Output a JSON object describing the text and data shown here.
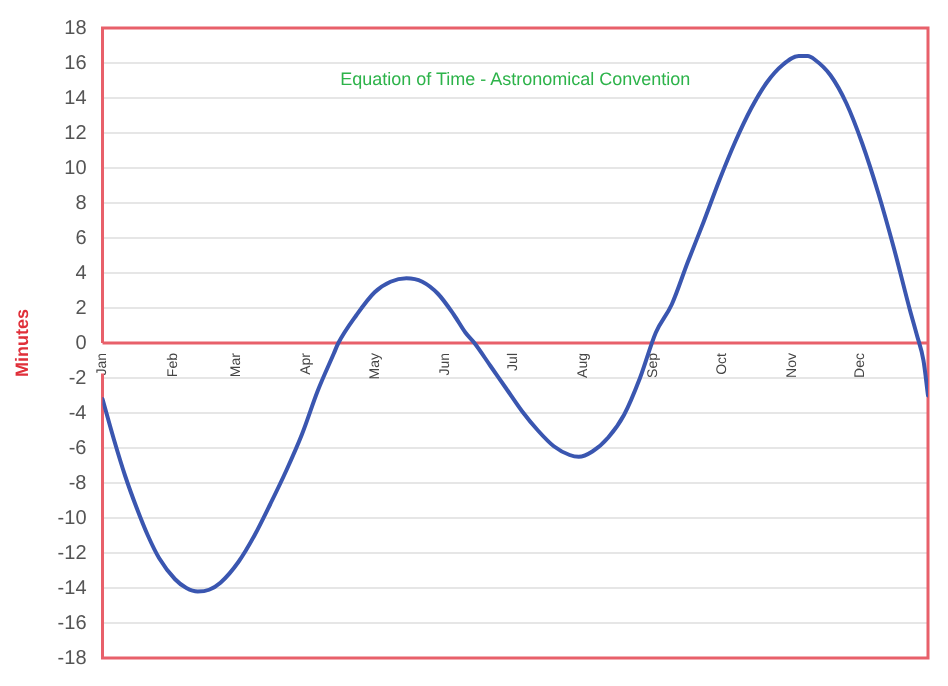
{
  "chart_data": {
    "type": "line",
    "title": "Equation of Time - Astronomical Convention",
    "ylabel": "Minutes",
    "x": [
      "--01-01",
      "--01-06",
      "--01-11",
      "--01-16",
      "--01-21",
      "--01-26",
      "--02-02",
      "--02-07",
      "--02-12",
      "--02-17",
      "--02-22",
      "--03-02",
      "--03-09",
      "--03-16",
      "--03-23",
      "--03-30",
      "--04-06",
      "--04-13",
      "--04-15",
      "--04-23",
      "--05-01",
      "--05-08",
      "--05-15",
      "--05-22",
      "--05-29",
      "--06-05",
      "--06-10",
      "--06-14",
      "--06-21",
      "--06-28",
      "--07-05",
      "--07-12",
      "--07-19",
      "--07-26",
      "--07-30",
      "--08-05",
      "--08-12",
      "--08-19",
      "--08-26",
      "--09-02",
      "--09-09",
      "--09-16",
      "--09-23",
      "--09-30",
      "--10-07",
      "--10-14",
      "--10-21",
      "--10-28",
      "--11-04",
      "--11-08",
      "--11-11",
      "--11-18",
      "--11-25",
      "--12-02",
      "--12-09",
      "--12-16",
      "--12-23",
      "--12-26",
      "--12-29",
      "--12-31"
    ],
    "series": [
      {
        "color": "#3a56b0",
        "values": [
          -3.2,
          -5.5,
          -7.6,
          -9.4,
          -11.0,
          -12.3,
          -13.5,
          -14.0,
          -14.2,
          -14.1,
          -13.7,
          -12.5,
          -11.0,
          -9.2,
          -7.3,
          -5.2,
          -2.7,
          -0.6,
          0,
          1.6,
          2.9,
          3.5,
          3.7,
          3.5,
          2.8,
          1.6,
          0.6,
          0,
          -1.3,
          -2.6,
          -3.9,
          -5.0,
          -5.9,
          -6.4,
          -6.5,
          -6.2,
          -5.4,
          -4.1,
          -2.0,
          0.6,
          2.2,
          4.6,
          6.9,
          9.3,
          11.5,
          13.4,
          14.9,
          15.9,
          16.4,
          16.4,
          16.2,
          15.3,
          13.7,
          11.4,
          8.6,
          5.4,
          1.9,
          0.5,
          -1.0,
          -3.0
        ]
      }
    ],
    "xlim": [
      "--01-01",
      "--12-31"
    ],
    "xticks": [
      {
        "value": "--01-01",
        "label": "Jan"
      },
      {
        "value": "--02-01",
        "label": "Feb"
      },
      {
        "value": "--03-01",
        "label": "Mar"
      },
      {
        "value": "--04-01",
        "label": "Apr"
      },
      {
        "value": "--05-01",
        "label": "May"
      },
      {
        "value": "--06-01",
        "label": "Jun"
      },
      {
        "value": "--07-01",
        "label": "Jul"
      },
      {
        "value": "--08-01",
        "label": "Aug"
      },
      {
        "value": "--09-01",
        "label": "Sep"
      },
      {
        "value": "--10-01",
        "label": "Oct"
      },
      {
        "value": "--11-01",
        "label": "Nov"
      },
      {
        "value": "--12-01",
        "label": "Dec"
      }
    ],
    "ylim": [
      -18,
      18
    ],
    "yticks": [
      -18,
      -16,
      -14,
      -12,
      -10,
      -8,
      -6,
      -4,
      -2,
      0,
      2,
      4,
      6,
      8,
      10,
      12,
      14,
      16,
      18
    ],
    "grid": "y",
    "legend": false,
    "marker": "none",
    "line_style": "solid"
  }
}
